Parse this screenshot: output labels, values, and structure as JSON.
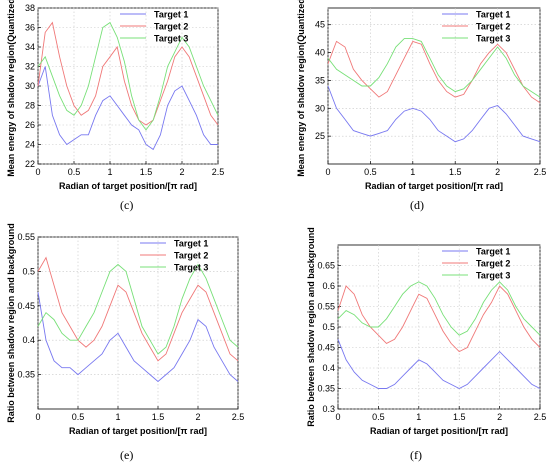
{
  "figure": {
    "captions": [
      "(c)",
      "(d)",
      "(e)",
      "(f)"
    ]
  },
  "chart_data": [
    {
      "type": "line",
      "panel": "(c)",
      "xlabel": "Radian of target position/[π rad]",
      "ylabel": "Mean energy of shadow region(Quantized)",
      "xlim": [
        0,
        2.5
      ],
      "ylim": [
        22,
        38
      ],
      "xticks": [
        "0",
        "0.5",
        "1",
        "1.5",
        "2",
        "2.5"
      ],
      "yticks": [
        "22",
        "24",
        "26",
        "28",
        "30",
        "32",
        "34",
        "36",
        "38"
      ],
      "grid": true,
      "legend": "top-right",
      "x": [
        0,
        0.1,
        0.2,
        0.3,
        0.4,
        0.5,
        0.6,
        0.7,
        0.8,
        0.9,
        1.0,
        1.1,
        1.2,
        1.3,
        1.4,
        1.5,
        1.6,
        1.7,
        1.8,
        1.9,
        2.0,
        2.1,
        2.2,
        2.3,
        2.4,
        2.5
      ],
      "series": [
        {
          "name": "Target 1",
          "color": "#7878f0",
          "values": [
            30,
            32,
            27,
            25,
            24,
            24.5,
            25,
            25,
            27,
            28.5,
            29,
            28,
            27,
            26,
            25.5,
            24,
            23.5,
            25,
            28,
            29.5,
            30,
            28.5,
            27,
            25,
            24,
            24
          ]
        },
        {
          "name": "Target 2",
          "color": "#f07878",
          "values": [
            30,
            35.5,
            36.5,
            33,
            30,
            28,
            27,
            27.5,
            29,
            32,
            33,
            34,
            30.5,
            28,
            26.5,
            26,
            26.5,
            28.5,
            30.5,
            33,
            34,
            33,
            31,
            29,
            27,
            26
          ]
        },
        {
          "name": "Target 3",
          "color": "#78e078",
          "values": [
            32,
            33,
            31,
            29,
            27.5,
            27,
            28,
            30,
            33,
            36,
            36.5,
            35,
            32.5,
            29,
            26.5,
            25.5,
            26.5,
            29,
            32,
            33.5,
            35,
            34,
            32,
            30,
            28.5,
            27
          ]
        }
      ]
    },
    {
      "type": "line",
      "panel": "(d)",
      "xlabel": "Radian of target position/[π rad]",
      "ylabel": "Mean energy of shadow region(Quantized)",
      "xlim": [
        0,
        2.5
      ],
      "ylim": [
        20,
        48
      ],
      "xticks": [
        "0",
        "0.5",
        "1",
        "1.5",
        "2",
        "2.5"
      ],
      "yticks": [
        "25",
        "30",
        "35",
        "40",
        "45"
      ],
      "grid": true,
      "legend": "top-right",
      "x": [
        0,
        0.1,
        0.2,
        0.3,
        0.4,
        0.5,
        0.6,
        0.7,
        0.8,
        0.9,
        1.0,
        1.1,
        1.2,
        1.3,
        1.4,
        1.5,
        1.6,
        1.7,
        1.8,
        1.9,
        2.0,
        2.1,
        2.2,
        2.3,
        2.4,
        2.5
      ],
      "series": [
        {
          "name": "Target 1",
          "color": "#7878f0",
          "values": [
            34,
            30,
            28,
            26,
            25.5,
            25,
            25.5,
            26,
            28,
            29.5,
            30,
            29.5,
            28,
            26,
            25,
            24,
            24.5,
            26,
            28,
            30,
            30.5,
            29,
            27,
            25,
            24.5,
            24
          ]
        },
        {
          "name": "Target 2",
          "color": "#f07878",
          "values": [
            38,
            42,
            41,
            37,
            35,
            33.5,
            32,
            33,
            36,
            39,
            42,
            41.5,
            38,
            35,
            33,
            32,
            32.5,
            35,
            38,
            40,
            41.5,
            40,
            37,
            34,
            32,
            31
          ]
        },
        {
          "name": "Target 3",
          "color": "#78e078",
          "values": [
            39,
            37,
            36,
            35,
            34,
            34,
            35.5,
            38,
            41,
            42.5,
            42.5,
            42,
            39,
            36,
            34,
            33,
            33.5,
            35,
            37,
            39,
            41,
            39,
            36,
            34,
            33,
            32
          ]
        }
      ]
    },
    {
      "type": "line",
      "panel": "(e)",
      "xlabel": "Radian of target position/[π rad]",
      "ylabel": "Ratio between shadow region and background",
      "xlim": [
        0,
        2.5
      ],
      "ylim": [
        0.3,
        0.55
      ],
      "xticks": [
        "0",
        "0.5",
        "1",
        "1.5",
        "2",
        "2.5"
      ],
      "yticks": [
        "0.35",
        "0.4",
        "0.45",
        "0.5",
        "0.55"
      ],
      "grid": true,
      "legend": "top-right",
      "x": [
        0,
        0.1,
        0.2,
        0.3,
        0.4,
        0.5,
        0.6,
        0.7,
        0.8,
        0.9,
        1.0,
        1.1,
        1.2,
        1.3,
        1.4,
        1.5,
        1.6,
        1.7,
        1.8,
        1.9,
        2.0,
        2.1,
        2.2,
        2.3,
        2.4,
        2.5
      ],
      "series": [
        {
          "name": "Target 1",
          "color": "#7878f0",
          "values": [
            0.47,
            0.4,
            0.37,
            0.36,
            0.36,
            0.35,
            0.36,
            0.37,
            0.38,
            0.4,
            0.41,
            0.39,
            0.37,
            0.36,
            0.35,
            0.34,
            0.35,
            0.36,
            0.38,
            0.4,
            0.43,
            0.42,
            0.39,
            0.37,
            0.35,
            0.34
          ]
        },
        {
          "name": "Target 2",
          "color": "#f07878",
          "values": [
            0.5,
            0.52,
            0.48,
            0.44,
            0.42,
            0.4,
            0.39,
            0.4,
            0.42,
            0.45,
            0.48,
            0.47,
            0.44,
            0.41,
            0.39,
            0.37,
            0.38,
            0.41,
            0.44,
            0.46,
            0.48,
            0.47,
            0.44,
            0.41,
            0.38,
            0.37
          ]
        },
        {
          "name": "Target 3",
          "color": "#78e078",
          "values": [
            0.42,
            0.44,
            0.43,
            0.41,
            0.4,
            0.4,
            0.42,
            0.44,
            0.47,
            0.5,
            0.51,
            0.5,
            0.46,
            0.42,
            0.4,
            0.38,
            0.39,
            0.42,
            0.46,
            0.49,
            0.51,
            0.49,
            0.46,
            0.43,
            0.4,
            0.39
          ]
        }
      ]
    },
    {
      "type": "line",
      "panel": "(f)",
      "xlabel": "Radian of target position/[π rad]",
      "ylabel": "Ratio between shadow region and background",
      "xlim": [
        0,
        2.5
      ],
      "ylim": [
        0.3,
        0.7
      ],
      "xticks": [
        "0",
        "0.5",
        "1",
        "1.5",
        "2",
        "2.5"
      ],
      "yticks": [
        "0.3",
        "0.35",
        "0.4",
        "0.45",
        "0.5",
        "0.55",
        "0.6",
        "0.65"
      ],
      "grid": true,
      "legend": "top-right",
      "x": [
        0,
        0.1,
        0.2,
        0.3,
        0.4,
        0.5,
        0.6,
        0.7,
        0.8,
        0.9,
        1.0,
        1.1,
        1.2,
        1.3,
        1.4,
        1.5,
        1.6,
        1.7,
        1.8,
        1.9,
        2.0,
        2.1,
        2.2,
        2.3,
        2.4,
        2.5
      ],
      "series": [
        {
          "name": "Target 1",
          "color": "#7878f0",
          "values": [
            0.47,
            0.42,
            0.39,
            0.37,
            0.36,
            0.35,
            0.35,
            0.36,
            0.38,
            0.4,
            0.42,
            0.41,
            0.39,
            0.37,
            0.36,
            0.35,
            0.36,
            0.38,
            0.4,
            0.42,
            0.44,
            0.42,
            0.4,
            0.38,
            0.36,
            0.35
          ]
        },
        {
          "name": "Target 2",
          "color": "#f07878",
          "values": [
            0.54,
            0.6,
            0.58,
            0.53,
            0.5,
            0.48,
            0.46,
            0.47,
            0.5,
            0.54,
            0.58,
            0.57,
            0.53,
            0.49,
            0.46,
            0.44,
            0.45,
            0.49,
            0.53,
            0.56,
            0.6,
            0.58,
            0.54,
            0.5,
            0.47,
            0.45
          ]
        },
        {
          "name": "Target 3",
          "color": "#78e078",
          "values": [
            0.52,
            0.54,
            0.53,
            0.51,
            0.5,
            0.5,
            0.52,
            0.55,
            0.58,
            0.6,
            0.61,
            0.6,
            0.57,
            0.53,
            0.5,
            0.48,
            0.49,
            0.52,
            0.56,
            0.59,
            0.61,
            0.59,
            0.55,
            0.52,
            0.5,
            0.48
          ]
        }
      ]
    }
  ]
}
